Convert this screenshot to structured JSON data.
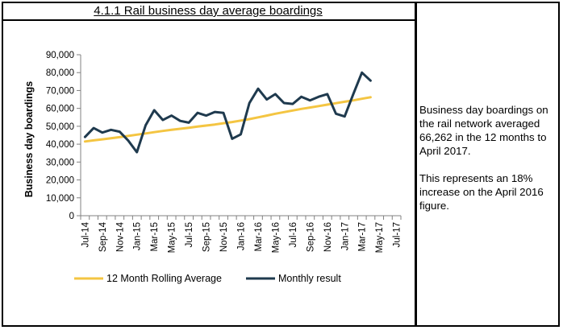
{
  "title": "4.1.1 Rail business day average boardings",
  "sidebar": {
    "paragraph1": "Business day boardings on the rail network averaged 66,262 in the 12 months to April 2017.",
    "paragraph2": "This represents an 18% increase on the April 2016 figure."
  },
  "colors": {
    "rolling": "#F4C542",
    "monthly": "#1F3A4E",
    "axis": "#808080"
  },
  "chart_data": {
    "type": "line",
    "ylabel": "Business day boardings",
    "xlabel": "",
    "ylim": [
      0,
      90000
    ],
    "yticks": [
      0,
      10000,
      20000,
      30000,
      40000,
      50000,
      60000,
      70000,
      80000,
      90000
    ],
    "ytick_labels": [
      "0",
      "10,000",
      "20,000",
      "30,000",
      "40,000",
      "50,000",
      "60,000",
      "70,000",
      "80,000",
      "90,000"
    ],
    "x_labels": [
      "Jul-14",
      "Sep-14",
      "Nov-14",
      "Jan-15",
      "Mar-15",
      "May-15",
      "Jul-15",
      "Sep-15",
      "Nov-15",
      "Jan-16",
      "Mar-16",
      "May-16",
      "Jul-16",
      "Sep-16",
      "Nov-16",
      "Jan-17",
      "Mar-17",
      "May-17",
      "Jul-17"
    ],
    "months": [
      "Jul-14",
      "Aug-14",
      "Sep-14",
      "Oct-14",
      "Nov-14",
      "Dec-14",
      "Jan-15",
      "Feb-15",
      "Mar-15",
      "Apr-15",
      "May-15",
      "Jun-15",
      "Jul-15",
      "Aug-15",
      "Sep-15",
      "Oct-15",
      "Nov-15",
      "Dec-15",
      "Jan-16",
      "Feb-16",
      "Mar-16",
      "Apr-16",
      "May-16",
      "Jun-16",
      "Jul-16",
      "Aug-16",
      "Sep-16",
      "Oct-16",
      "Nov-16",
      "Dec-16",
      "Jan-17",
      "Feb-17",
      "Mar-17",
      "Apr-17",
      "May-17",
      "Jun-17",
      "Jul-17"
    ],
    "legend_position": "bottom",
    "series": [
      {
        "name": "12 Month Rolling Average",
        "values": [
          41500,
          42100,
          42700,
          43300,
          43900,
          44600,
          45300,
          46000,
          46700,
          47400,
          48000,
          48600,
          49200,
          49800,
          50400,
          51000,
          51700,
          52400,
          53200,
          54000,
          55000,
          56000,
          57000,
          57900,
          58800,
          59700,
          60500,
          61300,
          62100,
          62900,
          63700,
          64500,
          65400,
          66262
        ]
      },
      {
        "name": "Monthly result",
        "values": [
          44000,
          49000,
          46500,
          48000,
          47000,
          42000,
          35500,
          50500,
          59000,
          53500,
          56000,
          53000,
          52000,
          57500,
          56000,
          58000,
          57500,
          43000,
          45500,
          63000,
          71000,
          65000,
          68000,
          63000,
          62500,
          66500,
          64500,
          66500,
          68000,
          57000,
          55500,
          68000,
          80000,
          75500
        ]
      }
    ]
  }
}
